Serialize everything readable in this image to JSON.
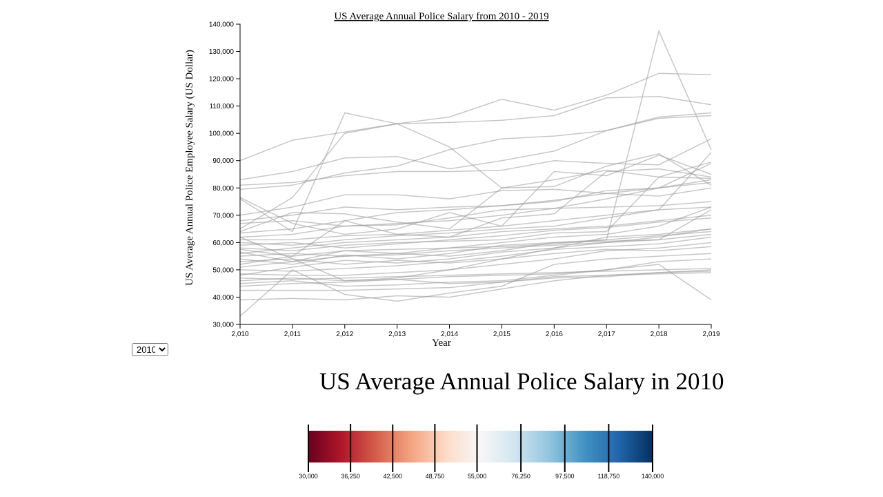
{
  "chart_data": [
    {
      "type": "line",
      "title": "US Average Annual Police Salary from 2010 - 2019",
      "xlabel": "Year",
      "ylabel": "US Average Annual Police Employee Salary (US Dollar)",
      "x": [
        2010,
        2011,
        2012,
        2013,
        2014,
        2015,
        2016,
        2017,
        2018,
        2019
      ],
      "x_tick_labels": [
        "2,010",
        "2,011",
        "2,012",
        "2,013",
        "2,014",
        "2,015",
        "2,016",
        "2,017",
        "2,018",
        "2,019"
      ],
      "y_tick_labels": [
        "30,000",
        "40,000",
        "50,000",
        "60,000",
        "70,000",
        "80,000",
        "90,000",
        "100,000",
        "110,000",
        "120,000",
        "130,000",
        "140,000"
      ],
      "ylim": [
        30000,
        140000
      ],
      "xlim": [
        2010,
        2019
      ],
      "grid": false,
      "line_color": "#999999",
      "series": [
        {
          "values": [
            90000,
            97500,
            100500,
            103500,
            104000,
            104800,
            106500,
            113000,
            113500,
            110500
          ]
        },
        {
          "values": [
            83000,
            86000,
            91000,
            91500,
            87000,
            90000,
            93500,
            101000,
            106000,
            107500
          ]
        },
        {
          "values": [
            81000,
            82000,
            84500,
            86000,
            86000,
            86500,
            90000,
            89000,
            88500,
            98000
          ]
        },
        {
          "values": [
            79500,
            81000,
            85500,
            88000,
            94000,
            98000,
            99000,
            101000,
            105500,
            106500
          ]
        },
        {
          "values": [
            76000,
            64000,
            107500,
            103500,
            106000,
            112500,
            108500,
            114000,
            122000,
            121500
          ]
        },
        {
          "values": [
            65000,
            76500,
            100000,
            103500,
            95000,
            80000,
            80500,
            88000,
            92500,
            81000
          ]
        },
        {
          "values": [
            70000,
            73000,
            77500,
            77500,
            76000,
            79000,
            79500,
            78000,
            80000,
            82000
          ]
        },
        {
          "values": [
            68000,
            70000,
            73000,
            72000,
            73000,
            73500,
            75500,
            78000,
            77000,
            80000
          ]
        },
        {
          "values": [
            76500,
            67000,
            63000,
            65000,
            71000,
            66000,
            86000,
            84500,
            92000,
            85000
          ]
        },
        {
          "values": [
            64000,
            71000,
            70500,
            67500,
            65000,
            80000,
            83000,
            86500,
            84000,
            83500
          ]
        },
        {
          "values": [
            62000,
            63000,
            66000,
            67000,
            68000,
            70000,
            72500,
            76000,
            80000,
            89000
          ]
        },
        {
          "values": [
            60000,
            59000,
            61000,
            62500,
            63500,
            65000,
            66000,
            69000,
            72000,
            93000
          ]
        },
        {
          "values": [
            58000,
            57000,
            59000,
            60000,
            60500,
            61000,
            63500,
            64000,
            84000,
            89500
          ]
        },
        {
          "values": [
            55000,
            56000,
            55000,
            56000,
            58000,
            60000,
            62000,
            63000,
            66000,
            73000
          ]
        },
        {
          "values": [
            54000,
            52000,
            55500,
            54000,
            56000,
            59000,
            60000,
            61000,
            62500,
            64000
          ]
        },
        {
          "values": [
            52000,
            55000,
            57000,
            57500,
            58000,
            58500,
            59500,
            61000,
            137500,
            94000
          ]
        },
        {
          "values": [
            51000,
            53000,
            55000,
            55500,
            57000,
            58000,
            59000,
            60000,
            61000,
            63000
          ]
        },
        {
          "values": [
            50000,
            49500,
            50500,
            51500,
            53000,
            55000,
            57500,
            58500,
            59500,
            62000
          ]
        },
        {
          "values": [
            48500,
            48000,
            48000,
            49000,
            50000,
            52000,
            54000,
            57000,
            58000,
            60000
          ]
        },
        {
          "values": [
            47000,
            46500,
            47000,
            47500,
            48000,
            48500,
            49000,
            49500,
            50000,
            50500
          ]
        },
        {
          "values": [
            46000,
            47000,
            46000,
            46500,
            45000,
            45500,
            47500,
            48000,
            49000,
            49500
          ]
        },
        {
          "values": [
            45000,
            46000,
            44000,
            44500,
            45500,
            46000,
            48000,
            50000,
            53000,
            54000
          ]
        },
        {
          "values": [
            44000,
            45000,
            45500,
            46500,
            47500,
            48000,
            48500,
            50000,
            52000,
            39000
          ]
        },
        {
          "values": [
            42500,
            42500,
            42500,
            43000,
            43500,
            45500,
            47000,
            47500,
            49000,
            50000
          ]
        },
        {
          "values": [
            39000,
            39500,
            39000,
            40500,
            40000,
            43000,
            46000,
            48000,
            48500,
            49000
          ]
        },
        {
          "values": [
            33000,
            50000,
            41000,
            38500,
            41500,
            44000,
            52000,
            54000,
            55000,
            56000
          ]
        },
        {
          "values": [
            56000,
            58000,
            60000,
            61000,
            62000,
            64000,
            65000,
            66000,
            68000,
            70000
          ]
        },
        {
          "values": [
            61000,
            61000,
            62500,
            63000,
            64500,
            66000,
            68000,
            70000,
            72000,
            73000
          ]
        },
        {
          "values": [
            57500,
            55000,
            68000,
            63000,
            62000,
            69000,
            70500,
            86000,
            87000,
            84000
          ]
        },
        {
          "values": [
            63500,
            65000,
            68000,
            71000,
            72000,
            73500,
            75000,
            79000,
            80000,
            83000
          ]
        },
        {
          "values": [
            67000,
            68000,
            66000,
            66500,
            69000,
            72000,
            72500,
            73000,
            73500,
            75000
          ]
        },
        {
          "values": [
            59000,
            60000,
            58000,
            59500,
            61000,
            62500,
            64500,
            65500,
            67500,
            69000
          ]
        },
        {
          "values": [
            53000,
            54000,
            52000,
            53500,
            52500,
            54000,
            56000,
            57500,
            57000,
            58500
          ]
        },
        {
          "values": [
            48000,
            51000,
            53500,
            52500,
            54000,
            56500,
            58000,
            60000,
            62000,
            65000
          ]
        },
        {
          "values": [
            62000,
            54000,
            46000,
            47000,
            50000,
            54000,
            58000,
            62000,
            63000,
            65000
          ]
        },
        {
          "values": [
            56500,
            53000,
            57000,
            56000,
            55000,
            57000,
            60000,
            60500,
            61000,
            72000
          ]
        }
      ]
    },
    {
      "type": "heatmap",
      "title": "US Average Annual Police Salary in 2010",
      "legend_tick_labels": [
        "30,000",
        "36,250",
        "42,500",
        "48,750",
        "55,000",
        "76,250",
        "97,500",
        "118,750",
        "140,000"
      ],
      "colors": [
        "#67001f",
        "#b2182b",
        "#d6604d",
        "#f4a582",
        "#fddbc7",
        "#f7f7f7",
        "#d1e5f0",
        "#92c5de",
        "#4393c3",
        "#2166ac",
        "#053061"
      ]
    }
  ],
  "controls": {
    "year_select": {
      "selected": "2010",
      "options": [
        "2010"
      ]
    }
  }
}
